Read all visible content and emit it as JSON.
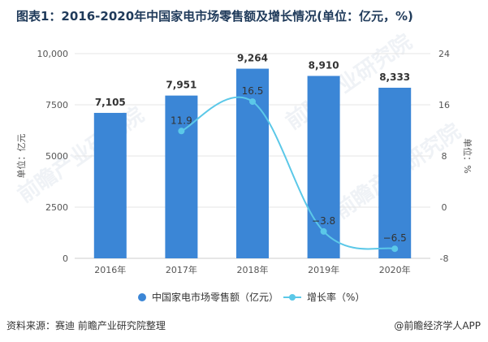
{
  "chart_data": {
    "type": "bar",
    "title": "图表1：2016-2020年中国家电市场零售额及增长情况(单位：亿元，%)",
    "categories": [
      "2016年",
      "2017年",
      "2018年",
      "2019年",
      "2020年"
    ],
    "series": [
      {
        "name": "中国家电市场零售额（亿元）",
        "type": "bar",
        "axis": "left",
        "values": [
          7105,
          7951,
          9264,
          8910,
          8333
        ],
        "labels": [
          "7,105",
          "7,951",
          "9,264",
          "8,910",
          "8,333"
        ],
        "color": "#3b86d6"
      },
      {
        "name": "增长率（%）",
        "type": "line",
        "axis": "right",
        "values": [
          null,
          11.9,
          16.5,
          -3.8,
          -6.5
        ],
        "labels": [
          "",
          "11.9",
          "16.5",
          "−3.8",
          "−6.5"
        ],
        "color": "#5bc8e8"
      }
    ],
    "y_left": {
      "label": "单位：亿元",
      "min": 0,
      "max": 10000,
      "ticks": [
        0,
        2500,
        5000,
        7500,
        10000
      ],
      "tick_labels": [
        "0",
        "2500",
        "5000",
        "7500",
        "10,000"
      ]
    },
    "y_right": {
      "label": "单位：%",
      "min": -8,
      "max": 24,
      "ticks": [
        -8,
        0,
        8,
        16,
        24
      ],
      "tick_labels": [
        "-8",
        "0",
        "8",
        "16",
        "24"
      ]
    },
    "grid": true,
    "legend_position": "bottom"
  },
  "footer": {
    "source": "资料来源：赛迪 前瞻产业研究院整理",
    "brand": "@前瞻经济学人APP"
  },
  "watermark": {
    "text": "前瞻产业研究院",
    "color": "#e6ebf1"
  }
}
